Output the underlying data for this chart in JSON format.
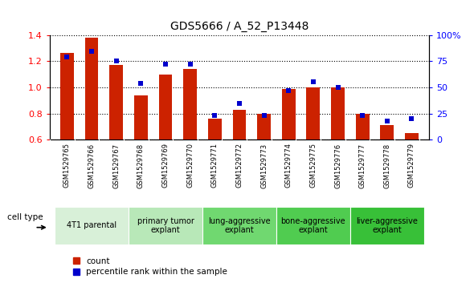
{
  "title": "GDS5666 / A_52_P13448",
  "samples": [
    "GSM1529765",
    "GSM1529766",
    "GSM1529767",
    "GSM1529768",
    "GSM1529769",
    "GSM1529770",
    "GSM1529771",
    "GSM1529772",
    "GSM1529773",
    "GSM1529774",
    "GSM1529775",
    "GSM1529776",
    "GSM1529777",
    "GSM1529778",
    "GSM1529779"
  ],
  "count_values": [
    1.26,
    1.38,
    1.17,
    0.94,
    1.1,
    1.14,
    0.76,
    0.83,
    0.8,
    0.99,
    1.0,
    1.0,
    0.8,
    0.71,
    0.65
  ],
  "percentile_values": [
    79,
    84,
    75,
    54,
    72,
    72,
    23,
    35,
    23,
    47,
    55,
    50,
    23,
    18,
    20
  ],
  "ylim_left": [
    0.6,
    1.4
  ],
  "ylim_right": [
    0,
    100
  ],
  "yticks_left": [
    0.6,
    0.8,
    1.0,
    1.2,
    1.4
  ],
  "yticks_right": [
    0,
    25,
    50,
    75,
    100
  ],
  "ytick_labels_right": [
    "0",
    "25",
    "50",
    "75",
    "100%"
  ],
  "cell_type_groups": [
    {
      "label": "4T1 parental",
      "start": 0,
      "end": 2,
      "color": "#d8f0d8"
    },
    {
      "label": "primary tumor\nexplant",
      "start": 3,
      "end": 5,
      "color": "#b8e8b8"
    },
    {
      "label": "lung-aggressive\nexplant",
      "start": 6,
      "end": 8,
      "color": "#70d870"
    },
    {
      "label": "bone-aggressive\nexplant",
      "start": 9,
      "end": 11,
      "color": "#50cc50"
    },
    {
      "label": "liver-aggressive\nexplant",
      "start": 12,
      "end": 14,
      "color": "#38c038"
    }
  ],
  "bar_color": "#cc2200",
  "percentile_color": "#0000cc",
  "bar_width": 0.55,
  "legend_labels": [
    "count",
    "percentile rank within the sample"
  ],
  "legend_colors": [
    "#cc2200",
    "#0000cc"
  ]
}
